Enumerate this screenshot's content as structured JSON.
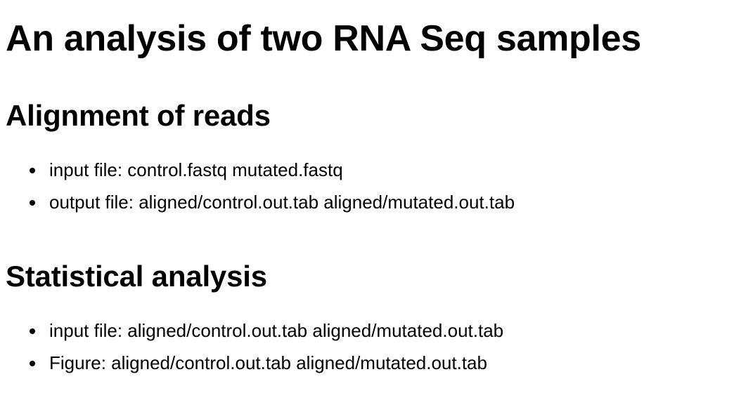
{
  "page_title": "An analysis of two RNA Seq samples",
  "sections": [
    {
      "title": "Alignment of reads",
      "items": [
        "input file: control.fastq mutated.fastq",
        "output file: aligned/control.out.tab aligned/mutated.out.tab"
      ]
    },
    {
      "title": "Statistical analysis",
      "items": [
        "input file: aligned/control.out.tab aligned/mutated.out.tab",
        "Figure: aligned/control.out.tab aligned/mutated.out.tab"
      ]
    }
  ]
}
